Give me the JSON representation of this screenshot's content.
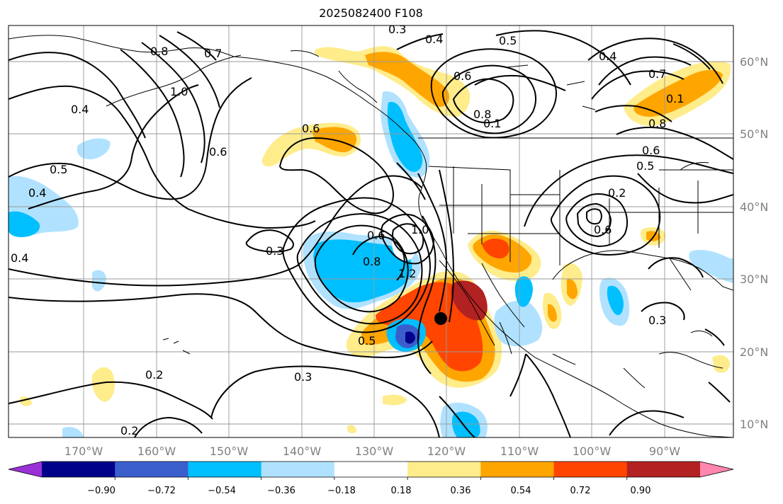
{
  "title": "2025082400 F108",
  "lat_labels": [
    "60°N",
    "50°N",
    "40°N",
    "30°N",
    "20°N",
    "10°N"
  ],
  "lon_labels": [
    "170°W",
    "160°W",
    "150°W",
    "140°W",
    "130°W",
    "120°W",
    "110°W",
    "100°W",
    "90°W"
  ],
  "colorbar": {
    "colors": [
      "#9b30d6",
      "#00008b",
      "#3a5fcd",
      "#00bfff",
      "#b0e2ff",
      "#ffffff",
      "#ffec8b",
      "#ffa500",
      "#ff4500",
      "#b22222",
      "#ff86ae"
    ],
    "tick_labels": [
      "−0.90",
      "−0.72",
      "−0.54",
      "−0.36",
      "−0.18",
      "0.18",
      "0.36",
      "0.54",
      "0.72",
      "0.90"
    ]
  },
  "contour_labels": [
    "0.3",
    "0.4",
    "0.5",
    "0.8",
    "0.7",
    "1.0",
    "0.4",
    "0.6",
    "0.4",
    "0.5",
    "0.4",
    "0.6",
    "0.8",
    "0.1",
    "0.7",
    "0.8",
    "0.6",
    "0.5",
    "0.2",
    "0.6",
    "1.0",
    "0.8",
    "0.6",
    "1.2",
    "0.3",
    "0.5",
    "0.3",
    "0.2",
    "0.2",
    "0.4",
    "0.3",
    "0.6",
    "0.1"
  ],
  "storm_marker": "storm-center"
}
